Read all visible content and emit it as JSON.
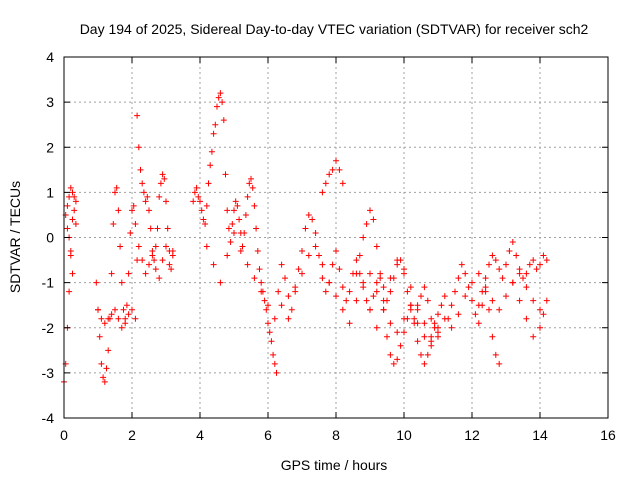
{
  "chart_data": {
    "type": "scatter",
    "title": "Day 194 of 2025, Sidereal Day-to-day VTEC variation (SDTVAR) for receiver sch2",
    "xlabel": "GPS time / hours",
    "ylabel": "SDTVAR / TECUs",
    "xlim": [
      0,
      16
    ],
    "ylim": [
      -4,
      4
    ],
    "xticks": [
      "0",
      "2",
      "4",
      "6",
      "8",
      "10",
      "12",
      "14",
      "16"
    ],
    "yticks": [
      "-4",
      "-3",
      "-2",
      "-1",
      "0",
      "1",
      "2",
      "3",
      "4"
    ],
    "grid": true,
    "marker": "+",
    "color": "#ff0000",
    "series": [
      {
        "name": "sch2",
        "x": [
          0.0,
          0.05,
          0.1,
          0.15,
          0.2,
          0.25,
          0.3,
          0.35,
          0.05,
          0.1,
          0.15,
          0.2,
          0.25,
          0.3,
          0.35,
          0.1,
          0.15,
          0.2,
          0.25,
          0.95,
          1.0,
          1.05,
          1.1,
          1.15,
          1.2,
          1.25,
          1.3,
          1.35,
          1.4,
          1.45,
          1.5,
          1.55,
          1.6,
          1.65,
          1.7,
          1.75,
          1.8,
          1.85,
          1.9,
          1.95,
          2.0,
          2.05,
          2.1,
          2.15,
          1.0,
          1.1,
          1.2,
          1.3,
          1.4,
          1.5,
          1.6,
          1.7,
          1.8,
          1.9,
          2.0,
          2.1,
          2.15,
          2.2,
          2.25,
          2.3,
          2.35,
          2.4,
          2.45,
          2.5,
          2.55,
          2.6,
          2.65,
          2.7,
          2.75,
          2.8,
          2.85,
          2.9,
          2.95,
          3.0,
          3.05,
          3.1,
          3.15,
          3.2,
          2.2,
          2.3,
          2.4,
          2.5,
          2.6,
          2.7,
          2.8,
          2.9,
          3.0,
          3.1,
          3.2,
          3.8,
          3.85,
          3.9,
          3.95,
          4.0,
          4.05,
          4.1,
          4.15,
          4.2,
          4.25,
          4.3,
          4.35,
          4.4,
          4.45,
          4.5,
          4.55,
          4.6,
          4.65,
          4.7,
          4.75,
          4.8,
          4.85,
          4.9,
          4.95,
          5.0,
          5.05,
          5.1,
          5.15,
          5.2,
          5.25,
          5.3,
          5.35,
          5.4,
          5.45,
          5.5,
          5.55,
          5.6,
          5.65,
          5.7,
          5.75,
          5.8,
          5.85,
          5.9,
          5.95,
          6.0,
          6.05,
          6.1,
          6.15,
          6.2,
          6.25,
          4.2,
          4.4,
          4.6,
          4.8,
          5.0,
          5.2,
          5.4,
          5.6,
          5.8,
          6.0,
          6.2,
          6.3,
          6.4,
          6.5,
          6.6,
          6.7,
          6.8,
          6.9,
          7.0,
          7.1,
          7.2,
          7.3,
          7.4,
          7.5,
          7.6,
          7.7,
          7.8,
          7.9,
          8.0,
          8.1,
          8.2,
          8.3,
          8.4,
          8.5,
          8.6,
          8.7,
          8.8,
          8.9,
          9.0,
          9.1,
          9.2,
          9.3,
          9.4,
          9.5,
          9.6,
          9.7,
          9.8,
          9.9,
          10.0,
          10.1,
          10.2,
          10.3,
          10.4,
          10.5,
          10.6,
          10.7,
          10.8,
          10.9,
          11.0,
          6.4,
          6.6,
          6.8,
          7.0,
          7.2,
          7.4,
          7.6,
          7.8,
          8.0,
          8.2,
          8.4,
          8.6,
          8.8,
          9.0,
          9.2,
          9.4,
          9.6,
          9.8,
          10.0,
          10.2,
          10.4,
          10.6,
          10.8,
          11.0,
          7.6,
          7.7,
          7.8,
          7.9,
          8.0,
          8.1,
          8.2,
          8.6,
          8.7,
          8.8,
          8.9,
          9.0,
          9.1,
          9.2,
          9.3,
          9.4,
          9.5,
          9.6,
          9.7,
          9.8,
          9.9,
          10.0,
          10.1,
          10.2,
          10.3,
          10.4,
          10.5,
          10.6,
          10.7,
          10.8,
          10.9,
          11.0,
          11.1,
          11.2,
          9.0,
          9.2,
          9.4,
          9.6,
          9.8,
          10.0,
          10.2,
          10.4,
          10.6,
          10.8,
          11.0,
          11.2,
          11.3,
          11.4,
          11.5,
          11.6,
          11.7,
          11.8,
          11.9,
          12.0,
          12.1,
          12.2,
          12.3,
          12.4,
          12.5,
          12.6,
          12.7,
          12.8,
          12.9,
          13.0,
          13.1,
          13.2,
          13.3,
          13.4,
          13.5,
          13.6,
          13.7,
          13.8,
          13.9,
          14.0,
          14.1,
          14.2,
          11.4,
          11.6,
          11.8,
          12.0,
          12.2,
          12.4,
          12.6,
          12.8,
          13.0,
          13.2,
          13.4,
          13.6,
          13.8,
          14.0,
          14.2,
          12.2,
          12.3,
          12.4,
          12.5,
          12.6,
          12.7,
          12.8,
          13.2,
          13.4,
          13.6,
          13.8,
          14.0,
          14.1
        ],
        "y": [
          -3.2,
          -2.8,
          -2.0,
          -1.2,
          -0.3,
          0.4,
          0.9,
          0.8,
          0.5,
          0.7,
          0.9,
          1.1,
          1.0,
          0.6,
          0.3,
          0.2,
          0.0,
          -0.4,
          -0.8,
          -1.0,
          -1.6,
          -2.2,
          -2.8,
          -3.1,
          -3.2,
          -2.9,
          -2.5,
          -1.8,
          -0.8,
          0.3,
          1.0,
          1.1,
          0.6,
          -0.2,
          -1.0,
          -1.6,
          -1.8,
          -1.5,
          -0.8,
          0.1,
          0.6,
          0.7,
          0.3,
          -0.5,
          -1.6,
          -1.8,
          -1.9,
          -1.8,
          -1.7,
          -1.6,
          -1.8,
          -2.0,
          -1.9,
          -1.7,
          -1.6,
          -1.8,
          2.7,
          2.0,
          1.5,
          1.2,
          1.0,
          0.8,
          0.9,
          0.6,
          0.2,
          -0.3,
          -0.5,
          -0.2,
          0.2,
          0.9,
          1.2,
          1.4,
          1.3,
          0.8,
          0.2,
          -0.3,
          -0.7,
          -0.4,
          -0.2,
          -0.5,
          -0.8,
          -0.6,
          -0.4,
          -0.7,
          -0.9,
          -0.5,
          -0.2,
          -0.6,
          -0.3,
          0.8,
          1.0,
          1.1,
          0.9,
          0.8,
          0.6,
          0.4,
          0.3,
          0.7,
          1.2,
          1.6,
          1.9,
          2.3,
          2.5,
          2.9,
          3.1,
          3.2,
          3.0,
          2.6,
          1.4,
          0.6,
          0.2,
          -0.1,
          0.3,
          0.6,
          0.8,
          0.7,
          0.4,
          0.1,
          -0.2,
          0.1,
          0.5,
          0.9,
          1.2,
          1.3,
          1.1,
          0.7,
          0.2,
          -0.3,
          -0.7,
          -1.0,
          -1.2,
          -1.4,
          -1.6,
          -1.9,
          -2.1,
          -2.3,
          -2.6,
          -2.8,
          -3.0,
          -0.2,
          -0.6,
          -1.0,
          -0.4,
          0.1,
          -0.3,
          -0.6,
          -0.9,
          -1.2,
          -1.5,
          -1.8,
          -1.2,
          -0.6,
          -0.9,
          -1.3,
          -1.6,
          -1.1,
          -0.7,
          -0.3,
          0.2,
          0.5,
          0.4,
          0.1,
          -0.4,
          -0.9,
          -1.2,
          -1.0,
          -0.6,
          -0.3,
          -0.7,
          -1.1,
          -1.4,
          -1.2,
          -0.8,
          -0.5,
          -0.8,
          -1.1,
          -1.4,
          -1.6,
          -1.3,
          -1.0,
          -0.8,
          -1.1,
          -1.4,
          -1.2,
          -0.9,
          -0.6,
          -0.5,
          -0.8,
          -1.2,
          -1.5,
          -1.8,
          -1.6,
          -1.3,
          -1.1,
          -1.4,
          -1.8,
          -2.0,
          -2.2,
          -1.5,
          -1.8,
          -1.2,
          -0.8,
          -0.4,
          -0.2,
          -0.6,
          -1.0,
          -1.3,
          -1.6,
          -1.9,
          -1.4,
          -1.0,
          -0.8,
          -1.2,
          -1.6,
          -1.9,
          -2.1,
          -1.8,
          -1.5,
          -1.9,
          -2.2,
          -2.4,
          -2.0,
          1.0,
          1.2,
          1.4,
          1.5,
          1.7,
          1.5,
          1.2,
          -0.8,
          -0.4,
          0.0,
          0.3,
          0.6,
          0.4,
          -0.2,
          -0.9,
          -1.6,
          -2.2,
          -2.6,
          -2.8,
          -2.7,
          -2.4,
          -2.1,
          -1.8,
          -1.6,
          -1.9,
          -2.3,
          -2.6,
          -2.8,
          -2.6,
          -2.2,
          -1.9,
          -1.7,
          -1.5,
          -1.3,
          -1.6,
          -2.0,
          -1.4,
          -0.9,
          -0.5,
          -0.7,
          -1.1,
          -1.5,
          -1.9,
          -2.3,
          -2.1,
          -1.8,
          -1.8,
          -1.5,
          -1.2,
          -0.9,
          -0.6,
          -0.8,
          -1.1,
          -1.4,
          -1.7,
          -1.5,
          -1.2,
          -0.9,
          -0.6,
          -0.4,
          -0.5,
          -0.7,
          -0.9,
          -0.6,
          -0.3,
          -0.1,
          -0.4,
          -0.7,
          -0.9,
          -0.8,
          -0.6,
          -0.5,
          -0.7,
          -0.6,
          -0.4,
          -0.5,
          -2.0,
          -1.7,
          -1.3,
          -1.0,
          -0.8,
          -1.1,
          -1.4,
          -1.6,
          -1.3,
          -1.0,
          -0.8,
          -1.1,
          -1.4,
          -1.6,
          -1.4,
          -1.9,
          -1.5,
          -1.2,
          -1.6,
          -2.2,
          -2.6,
          -2.8,
          -1.0,
          -1.4,
          -1.8,
          -2.2,
          -2.0,
          -1.7
        ]
      }
    ]
  }
}
